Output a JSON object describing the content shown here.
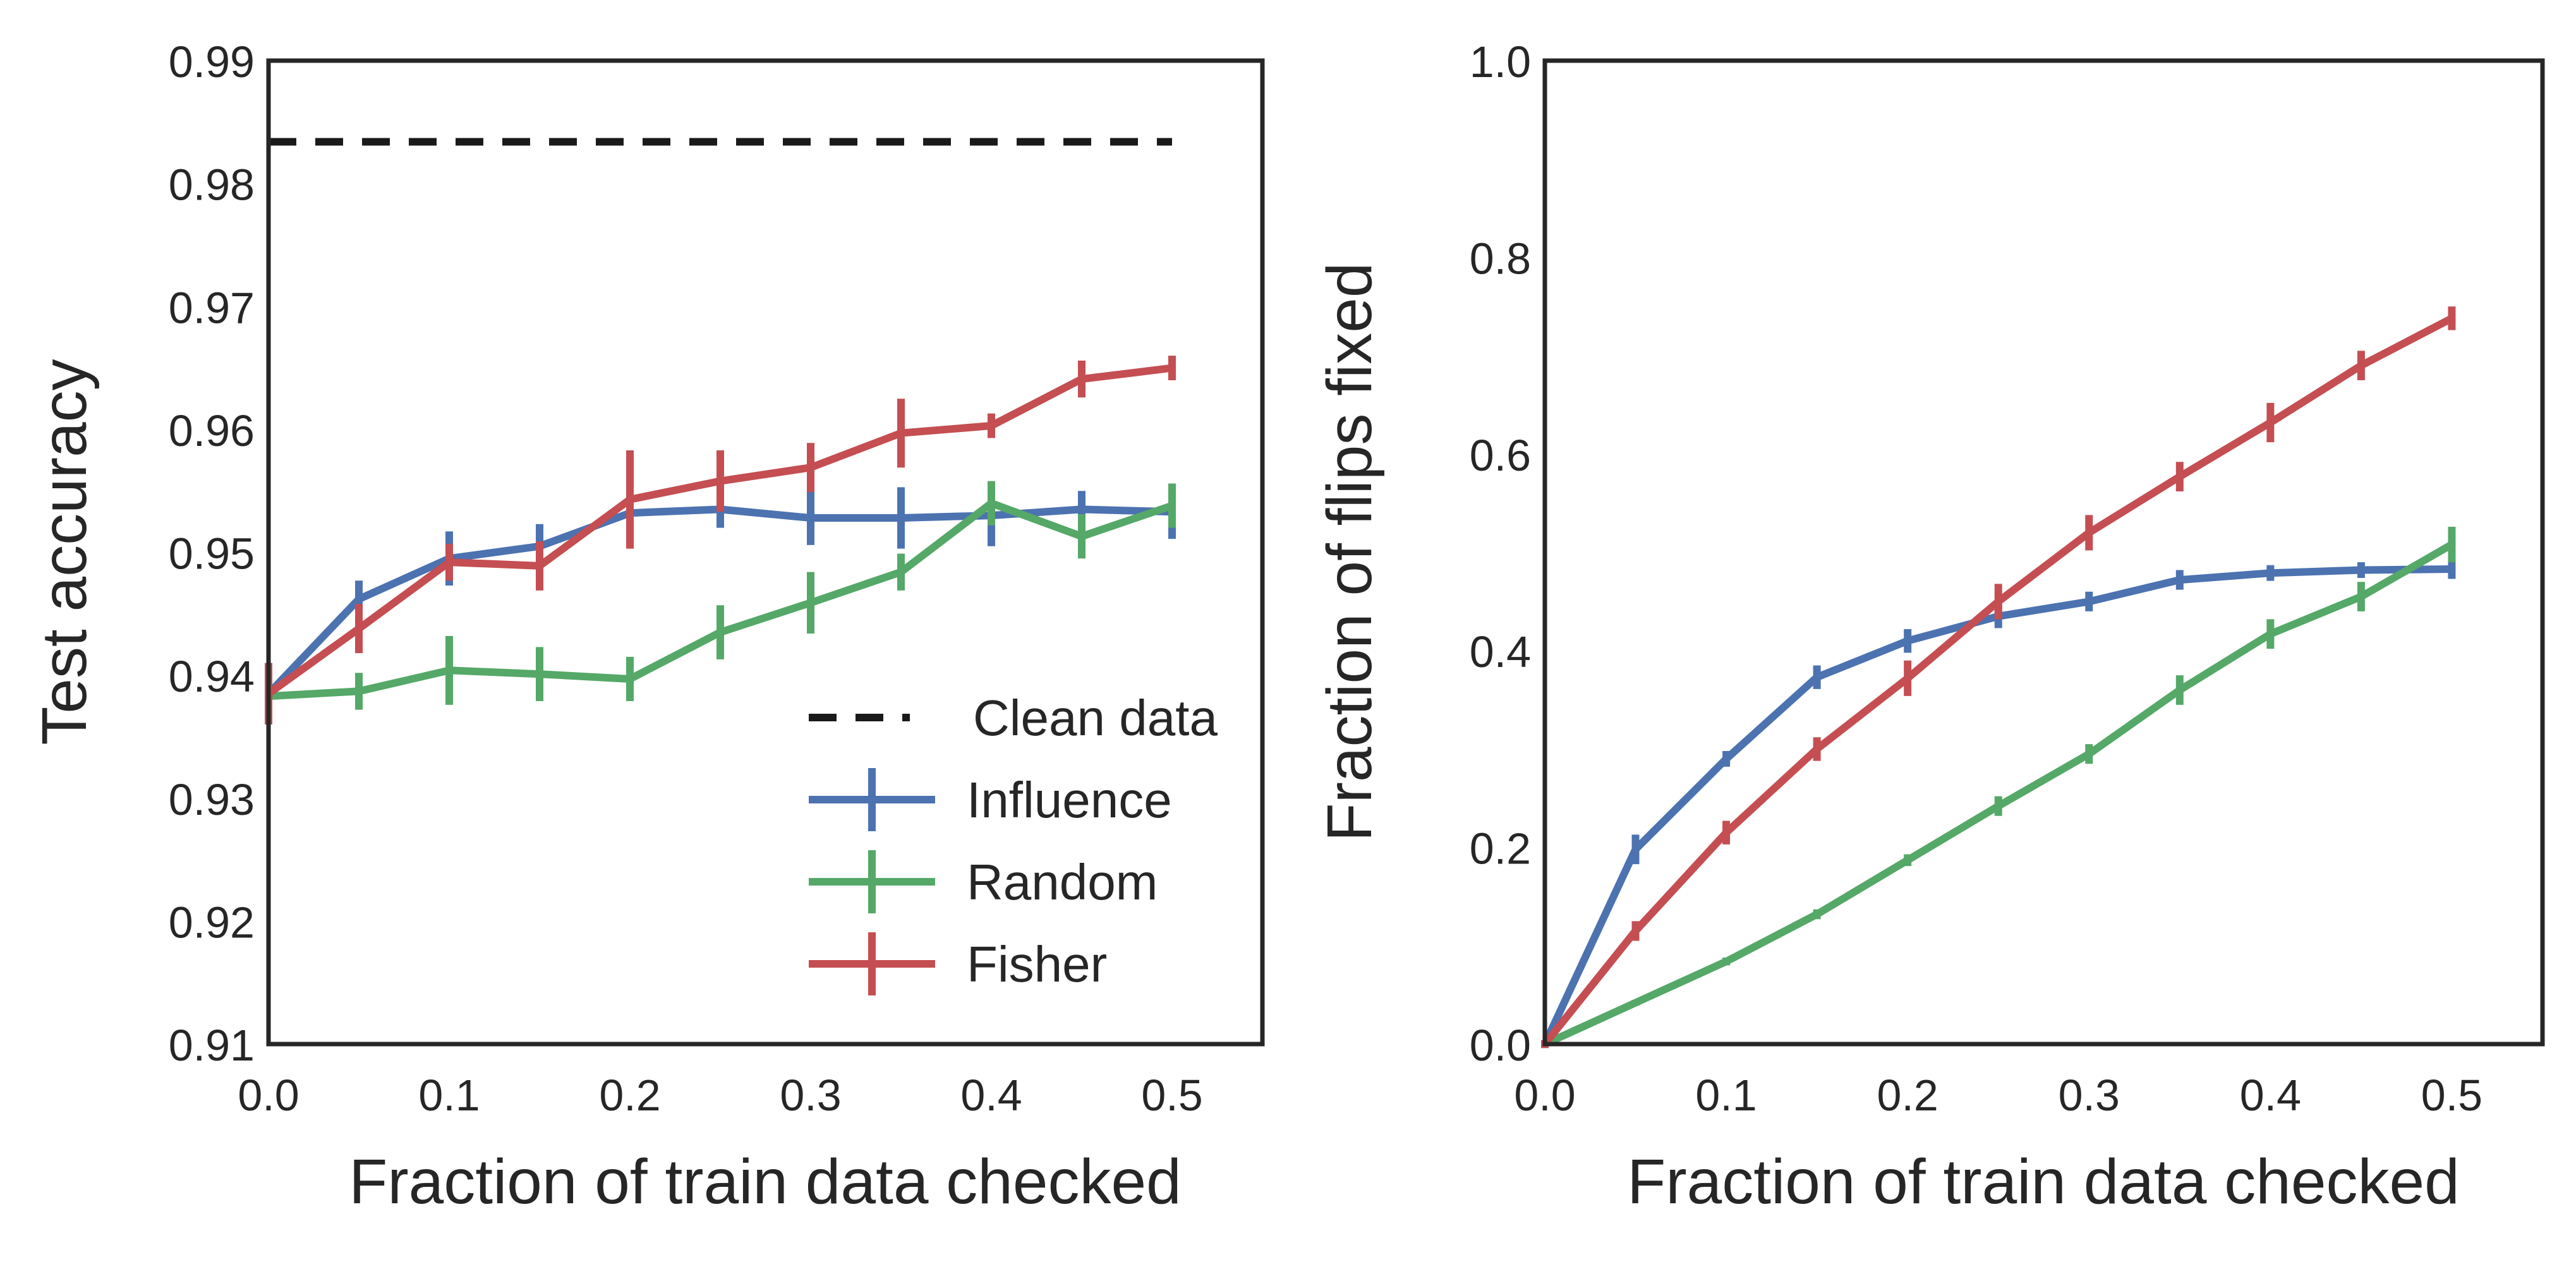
{
  "colors": {
    "influence": "#4c72b0",
    "random": "#55a868",
    "fisher": "#c44e52",
    "clean": "#1a1a1a",
    "axes": "#262626"
  },
  "chart_data": [
    {
      "type": "line",
      "name": "test-accuracy",
      "xlabel": "Fraction of train data checked",
      "ylabel": "Test accuracy",
      "xlim": [
        0,
        0.55
      ],
      "ylim": [
        0.91,
        0.99
      ],
      "xticks": [
        0.0,
        0.1,
        0.2,
        0.3,
        0.4,
        0.5
      ],
      "xtick_labels": [
        "0.0",
        "0.1",
        "0.2",
        "0.3",
        "0.4",
        "0.5"
      ],
      "yticks": [
        0.91,
        0.92,
        0.93,
        0.94,
        0.95,
        0.96,
        0.97,
        0.98,
        0.99
      ],
      "ytick_labels": [
        "0.91",
        "0.92",
        "0.93",
        "0.94",
        "0.95",
        "0.96",
        "0.97",
        "0.98",
        "0.99"
      ],
      "grid": false,
      "legend_location": "lower-right",
      "reference_line": {
        "name": "Clean data",
        "y": 0.9834,
        "x": [
          0.0,
          0.5
        ],
        "style": "dashed",
        "color_key": "clean"
      },
      "x": [
        0.0,
        0.05,
        0.1,
        0.15,
        0.2,
        0.25,
        0.3,
        0.35,
        0.4,
        0.45,
        0.5
      ],
      "series": [
        {
          "name": "Influence",
          "color_key": "influence",
          "values": [
            0.9385,
            0.9462,
            0.9495,
            0.9505,
            0.9532,
            0.9535,
            0.9528,
            0.9528,
            0.953,
            0.9535,
            0.9533
          ],
          "errors": [
            0.0015,
            0.0015,
            0.0022,
            0.0018,
            0.0012,
            0.0015,
            0.0022,
            0.0025,
            0.0025,
            0.0015,
            0.0022
          ]
        },
        {
          "name": "Random",
          "color_key": "random",
          "values": [
            0.9383,
            0.9387,
            0.9404,
            0.9401,
            0.9397,
            0.9435,
            0.9459,
            0.9484,
            0.954,
            0.9513,
            0.9538
          ],
          "errors": [
            0.0012,
            0.0015,
            0.0028,
            0.0022,
            0.0018,
            0.0022,
            0.0025,
            0.0015,
            0.0018,
            0.0018,
            0.0018
          ]
        },
        {
          "name": "Fisher",
          "color_key": "fisher",
          "values": [
            0.9385,
            0.9438,
            0.9492,
            0.9489,
            0.9543,
            0.9558,
            0.9569,
            0.9597,
            0.9603,
            0.9641,
            0.965
          ],
          "errors": [
            0.0025,
            0.002,
            0.0015,
            0.002,
            0.004,
            0.0025,
            0.002,
            0.0028,
            0.001,
            0.0015,
            0.001
          ]
        }
      ],
      "legend": [
        "Clean data",
        "Influence",
        "Random",
        "Fisher"
      ]
    },
    {
      "type": "line",
      "name": "flips-fixed",
      "xlabel": "Fraction of train data checked",
      "ylabel": "Fraction of flips fixed",
      "xlim": [
        0,
        0.55
      ],
      "ylim": [
        0.0,
        1.0
      ],
      "xticks": [
        0.0,
        0.1,
        0.2,
        0.3,
        0.4,
        0.5
      ],
      "xtick_labels": [
        "0.0",
        "0.1",
        "0.2",
        "0.3",
        "0.4",
        "0.5"
      ],
      "yticks": [
        0.0,
        0.2,
        0.4,
        0.6,
        0.8,
        1.0
      ],
      "ytick_labels": [
        "0.0",
        "0.2",
        "0.4",
        "0.6",
        "0.8",
        "1.0"
      ],
      "grid": false,
      "x": [
        0.0,
        0.05,
        0.1,
        0.15,
        0.2,
        0.25,
        0.3,
        0.35,
        0.4,
        0.45,
        0.5
      ],
      "series": [
        {
          "name": "Influence",
          "color_key": "influence",
          "values": [
            0.0,
            0.198,
            0.29,
            0.373,
            0.41,
            0.435,
            0.45,
            0.472,
            0.479,
            0.482,
            0.483
          ],
          "errors": [
            0.004,
            0.015,
            0.008,
            0.012,
            0.012,
            0.012,
            0.01,
            0.01,
            0.008,
            0.008,
            0.01
          ]
        },
        {
          "name": "Random",
          "color_key": "random",
          "values": [
            0.0,
            0.042,
            0.084,
            0.132,
            0.187,
            0.242,
            0.295,
            0.36,
            0.417,
            0.455,
            0.508
          ],
          "errors": [
            0.003,
            0.003,
            0.004,
            0.005,
            0.006,
            0.01,
            0.01,
            0.015,
            0.015,
            0.015,
            0.018
          ]
        },
        {
          "name": "Fisher",
          "color_key": "fisher",
          "values": [
            0.0,
            0.115,
            0.215,
            0.3,
            0.372,
            0.45,
            0.52,
            0.577,
            0.632,
            0.69,
            0.738
          ],
          "errors": [
            0.004,
            0.01,
            0.012,
            0.012,
            0.018,
            0.018,
            0.018,
            0.015,
            0.02,
            0.015,
            0.012
          ]
        }
      ]
    }
  ]
}
